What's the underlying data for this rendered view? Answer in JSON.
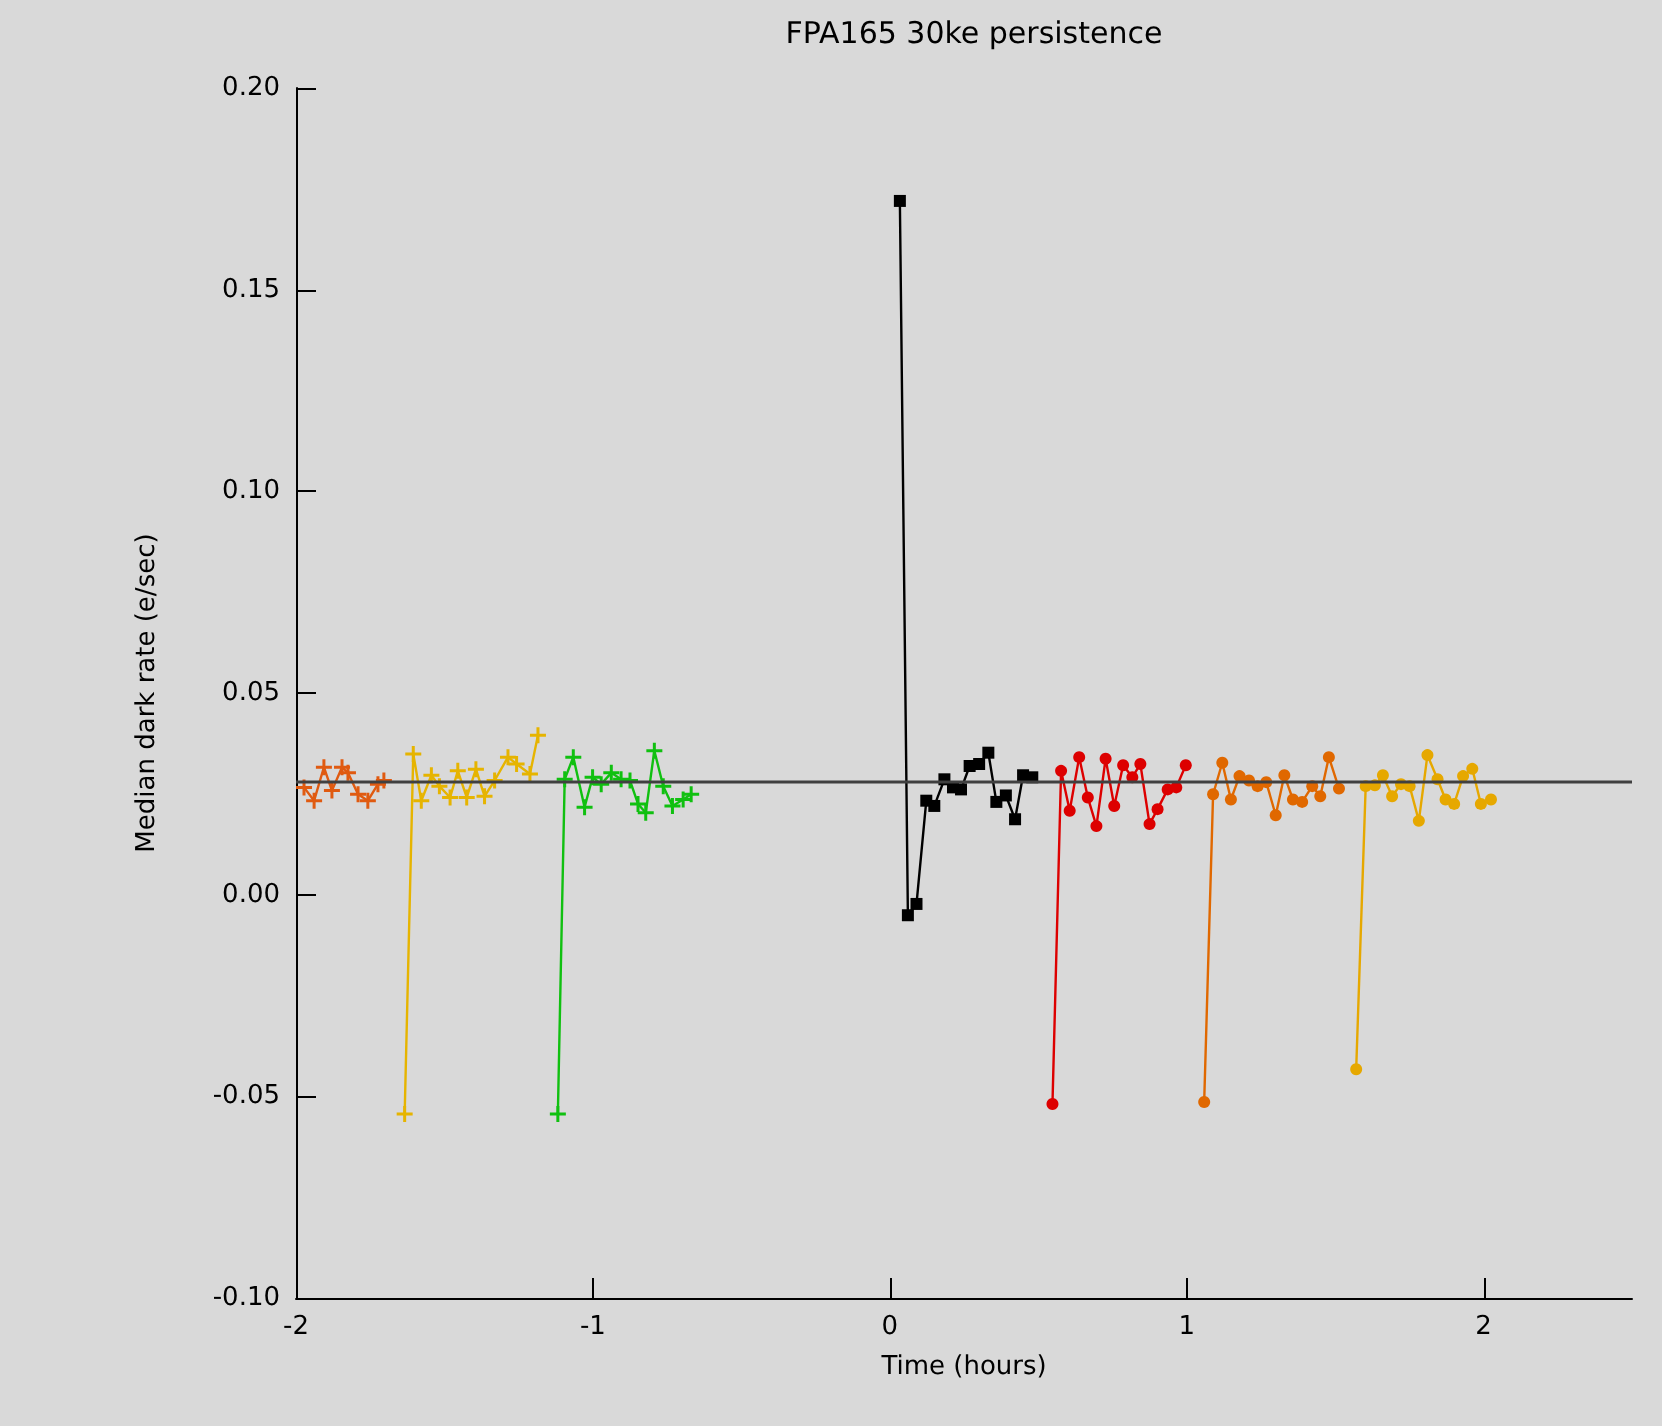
{
  "chart_data": {
    "type": "line",
    "title": "FPA165 30ke persistence",
    "xlabel": "Time (hours)",
    "ylabel": "Median dark rate (e/sec)",
    "xlim": [
      -2,
      2.5
    ],
    "xticks": [
      -2,
      -1,
      0,
      1,
      2
    ],
    "ylim": [
      -0.1,
      0.2
    ],
    "yticks": [
      {
        "value": -0.1,
        "label": "-0.10"
      },
      {
        "value": -0.05,
        "label": "-0.05"
      },
      {
        "value": 0,
        "label": "0.00"
      },
      {
        "value": 0.05,
        "label": "0.05"
      },
      {
        "value": 0.1,
        "label": "0.10"
      },
      {
        "value": 0.15,
        "label": "0.15"
      },
      {
        "value": 0.2,
        "label": "0.20"
      }
    ],
    "grid": false,
    "ref_lines": [
      {
        "axis": "y",
        "value": 0.028,
        "color": "#404040"
      }
    ],
    "series": [
      {
        "color": "#e05a10",
        "marker": "cross",
        "x": [
          -1.973,
          -1.939,
          -1.906,
          -1.879,
          -1.845,
          -1.825,
          -1.791,
          -1.758,
          -1.724,
          -1.704
        ],
        "values": [
          0.0266,
          0.0233,
          0.0316,
          0.0258,
          0.0316,
          0.0302,
          0.0249,
          0.0233,
          0.0274,
          0.0283
        ]
      },
      {
        "color": "#e6b400",
        "marker": "cross",
        "x": [
          -1.634,
          -1.605,
          -1.578,
          -1.544,
          -1.517,
          -1.481,
          -1.455,
          -1.425,
          -1.394,
          -1.365,
          -1.331,
          -1.286,
          -1.257,
          -1.212,
          -1.185
        ],
        "values": [
          -0.0544,
          0.0349,
          0.0233,
          0.0296,
          0.0269,
          0.0241,
          0.0307,
          0.0241,
          0.0311,
          0.0244,
          0.0283,
          0.0341,
          0.0324,
          0.0299,
          0.0395
        ]
      },
      {
        "color": "#10c010",
        "marker": "cross",
        "x": [
          -1.118,
          -1.095,
          -1.066,
          -1.028,
          -1.001,
          -0.972,
          -0.938,
          -0.905,
          -0.875,
          -0.848,
          -0.822,
          -0.793,
          -0.763,
          -0.732,
          -0.696,
          -0.669
        ],
        "values": [
          -0.0544,
          0.0286,
          0.0341,
          0.0217,
          0.0291,
          0.0274,
          0.0302,
          0.0286,
          0.0283,
          0.0225,
          0.0203,
          0.0357,
          0.0269,
          0.022,
          0.0236,
          0.0249
        ]
      },
      {
        "color": "#000000",
        "marker": "square",
        "x": [
          0.034,
          0.061,
          0.09,
          0.123,
          0.15,
          0.184,
          0.213,
          0.24,
          0.269,
          0.301,
          0.332,
          0.359,
          0.391,
          0.422,
          0.449,
          0.48
        ],
        "values": [
          0.172,
          -0.0051,
          -0.0023,
          0.0233,
          0.022,
          0.0286,
          0.0266,
          0.0261,
          0.0319,
          0.0324,
          0.0352,
          0.023,
          0.0246,
          0.0187,
          0.0296,
          0.0291
        ]
      },
      {
        "color": "#dd0000",
        "marker": "circle",
        "x": [
          0.548,
          0.577,
          0.606,
          0.638,
          0.667,
          0.696,
          0.727,
          0.756,
          0.786,
          0.817,
          0.844,
          0.875,
          0.902,
          0.936,
          0.965,
          0.997
        ],
        "values": [
          -0.0519,
          0.0307,
          0.0208,
          0.0341,
          0.0241,
          0.017,
          0.0337,
          0.022,
          0.0321,
          0.0291,
          0.0324,
          0.0175,
          0.0212,
          0.0261,
          0.0266,
          0.0321
        ]
      },
      {
        "color": "#e06800",
        "marker": "circle",
        "x": [
          1.059,
          1.089,
          1.12,
          1.149,
          1.178,
          1.21,
          1.239,
          1.268,
          1.3,
          1.329,
          1.358,
          1.389,
          1.423,
          1.45,
          1.479,
          1.513
        ],
        "values": [
          -0.0514,
          0.0249,
          0.0327,
          0.0236,
          0.0294,
          0.0283,
          0.0269,
          0.0279,
          0.0197,
          0.0296,
          0.0236,
          0.023,
          0.0269,
          0.0244,
          0.0341,
          0.0263
        ]
      },
      {
        "color": "#e6a800",
        "marker": "circle",
        "x": [
          1.571,
          1.603,
          1.634,
          1.661,
          1.692,
          1.722,
          1.751,
          1.782,
          1.811,
          1.845,
          1.872,
          1.901,
          1.931,
          1.962,
          1.991,
          2.025
        ],
        "values": [
          -0.0433,
          0.0269,
          0.0271,
          0.0296,
          0.0244,
          0.0274,
          0.0269,
          0.0183,
          0.0346,
          0.0286,
          0.0236,
          0.0225,
          0.0294,
          0.0312,
          0.0225,
          0.0236
        ]
      }
    ]
  }
}
